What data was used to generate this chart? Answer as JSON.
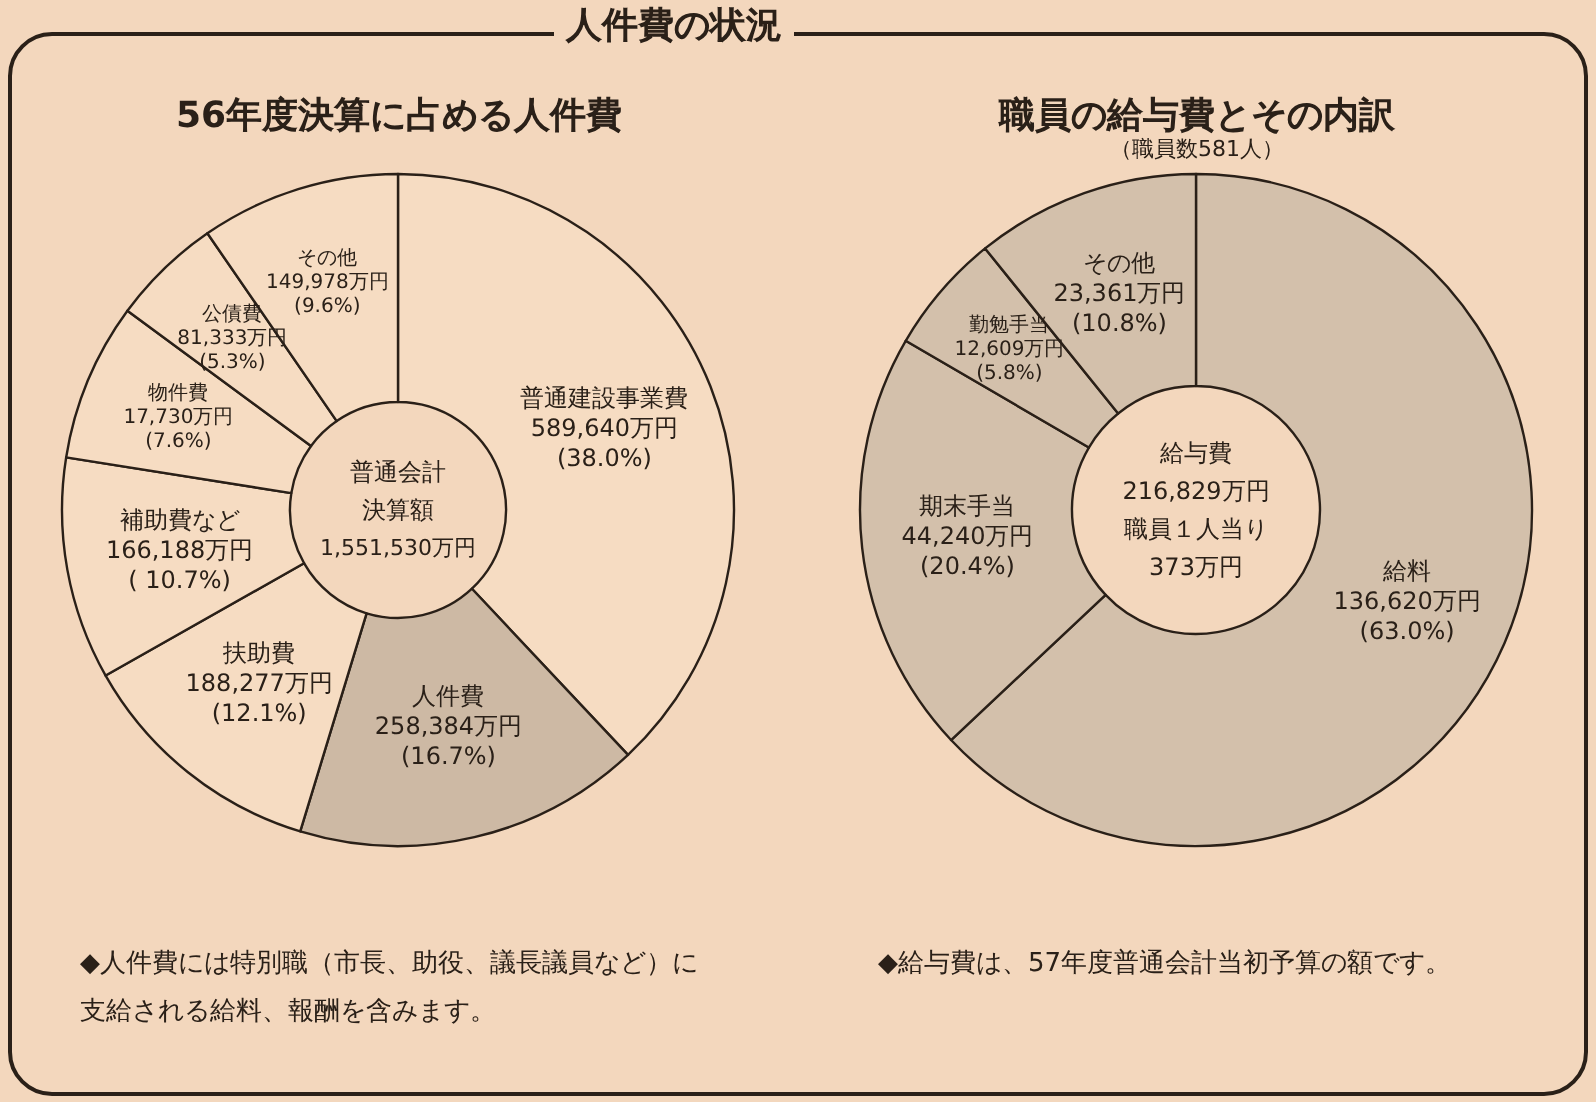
{
  "chart_data": [
    {
      "type": "donut",
      "title": "56年度決算に占める人件費",
      "categories": [
        "普通建設事業費",
        "人件費",
        "扶助費",
        "補助費など",
        "物件費",
        "公債費",
        "その他"
      ],
      "values": [
        38.0,
        16.7,
        12.1,
        10.7,
        7.6,
        5.3,
        9.6
      ],
      "value_labels": [
        "589,640万円\n(38.0%)",
        "258,384万円\n(16.7%)",
        "188,277万円\n(12.1%)",
        "166,188万円\n( 10.7%)",
        "17,730万円\n(7.6%)",
        "81,333万円\n(5.3%)",
        "149,978万円\n(9.6%)"
      ],
      "colors": [
        "#f6dcc2",
        "#cdb9a4",
        "#f6dcc2",
        "#f6dcc2",
        "#f6dcc2",
        "#f6dcc2",
        "#f6dcc2"
      ],
      "annotations": [
        "普通会計",
        "決算額",
        "1,551,530万円",
        "◆人件費には特別職（市長、助役、議長議員など）に支給される給料、報酬を含みます。",
        "人件費の状況"
      ]
    },
    {
      "type": "donut",
      "title": "職員の給与費とその内訳",
      "subtitle": "（職員数581人）",
      "categories": [
        "給料",
        "期末手当",
        "勤勉手当",
        "その他"
      ],
      "values": [
        63.0,
        20.4,
        5.8,
        10.8
      ],
      "value_labels": [
        "136,620万円\n(63.0%)",
        "44,240万円\n(20.4%)",
        "12,609万円\n(5.8%)",
        "23,361万円\n(10.8%)"
      ],
      "colors": [
        "#d3c0ab",
        "#d3c0ab",
        "#d3c0ab",
        "#d3c0ab"
      ],
      "annotations": [
        "給与費",
        "216,829万円",
        "職員１人当り",
        "373万円",
        "◆給与費は、57年度普通会計当初予算の額です。"
      ]
    }
  ]
}
